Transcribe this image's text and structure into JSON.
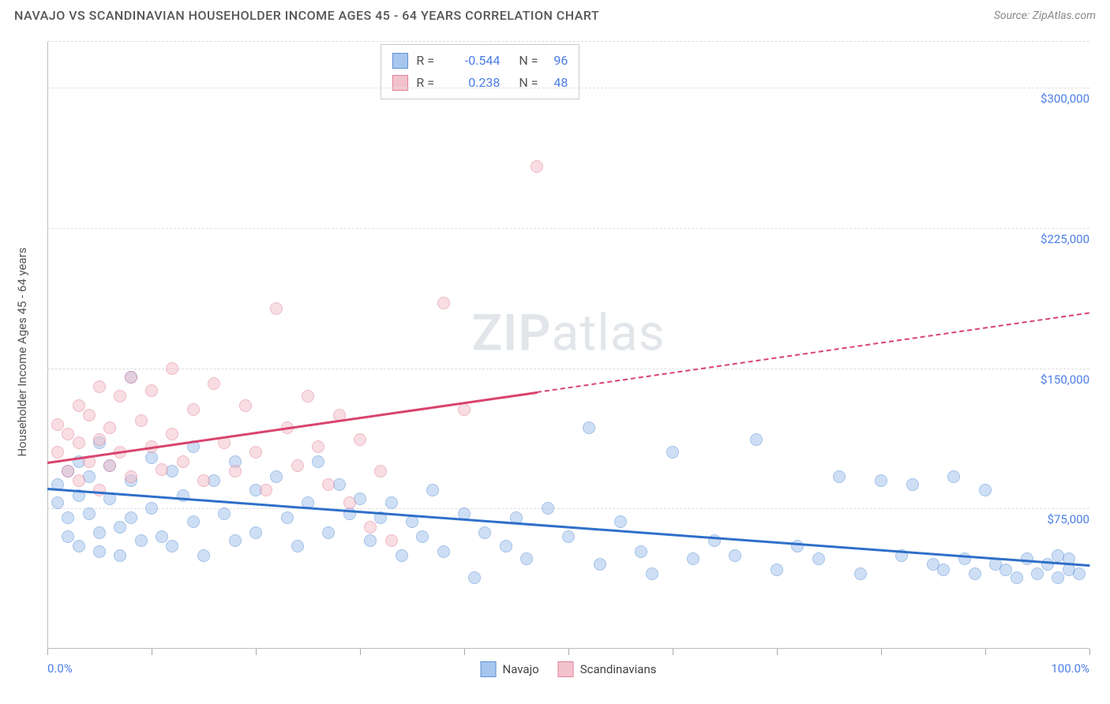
{
  "title": "NAVAJO VS SCANDINAVIAN HOUSEHOLDER INCOME AGES 45 - 64 YEARS CORRELATION CHART",
  "source": "Source: ZipAtlas.com",
  "watermark_bold": "ZIP",
  "watermark_light": "atlas",
  "ylabel": "Householder Income Ages 45 - 64 years",
  "chart": {
    "type": "scatter",
    "xlim": [
      0,
      100
    ],
    "ylim": [
      0,
      325000
    ],
    "xticks": [
      0,
      10,
      20,
      30,
      40,
      50,
      60,
      70,
      80,
      90,
      100
    ],
    "xticks_labeled": [
      {
        "v": 0,
        "label": "0.0%"
      },
      {
        "v": 100,
        "label": "100.0%"
      }
    ],
    "yticks": [
      {
        "v": 75000,
        "label": "$75,000"
      },
      {
        "v": 150000,
        "label": "$150,000"
      },
      {
        "v": 225000,
        "label": "$225,000"
      },
      {
        "v": 300000,
        "label": "$300,000"
      }
    ],
    "grid_color": "#dddddd",
    "axis_color": "#bbbbbb",
    "tick_label_color": "#4a7ee8",
    "background_color": "#ffffff",
    "point_radius": 8,
    "point_opacity": 0.55,
    "series": [
      {
        "name": "Navajo",
        "fill": "#a7c6ed",
        "stroke": "#5a8fd6",
        "trend_color": "#2f6fc9",
        "R_label": "R =",
        "R": "-0.544",
        "N_label": "N =",
        "N": "96",
        "trend": {
          "x1": 0,
          "y1": 86000,
          "x2": 100,
          "y2": 45000,
          "solid_until_x": 100
        },
        "points": [
          [
            1,
            88000
          ],
          [
            1,
            78000
          ],
          [
            2,
            95000
          ],
          [
            2,
            70000
          ],
          [
            2,
            60000
          ],
          [
            3,
            100000
          ],
          [
            3,
            82000
          ],
          [
            3,
            55000
          ],
          [
            4,
            92000
          ],
          [
            4,
            72000
          ],
          [
            5,
            110000
          ],
          [
            5,
            62000
          ],
          [
            5,
            52000
          ],
          [
            6,
            98000
          ],
          [
            6,
            80000
          ],
          [
            7,
            65000
          ],
          [
            7,
            50000
          ],
          [
            8,
            145000
          ],
          [
            8,
            90000
          ],
          [
            8,
            70000
          ],
          [
            9,
            58000
          ],
          [
            10,
            102000
          ],
          [
            10,
            75000
          ],
          [
            11,
            60000
          ],
          [
            12,
            95000
          ],
          [
            12,
            55000
          ],
          [
            13,
            82000
          ],
          [
            14,
            108000
          ],
          [
            14,
            68000
          ],
          [
            15,
            50000
          ],
          [
            16,
            90000
          ],
          [
            17,
            72000
          ],
          [
            18,
            100000
          ],
          [
            18,
            58000
          ],
          [
            20,
            85000
          ],
          [
            20,
            62000
          ],
          [
            22,
            92000
          ],
          [
            23,
            70000
          ],
          [
            24,
            55000
          ],
          [
            25,
            78000
          ],
          [
            26,
            100000
          ],
          [
            27,
            62000
          ],
          [
            28,
            88000
          ],
          [
            29,
            72000
          ],
          [
            30,
            80000
          ],
          [
            31,
            58000
          ],
          [
            32,
            70000
          ],
          [
            33,
            78000
          ],
          [
            34,
            50000
          ],
          [
            35,
            68000
          ],
          [
            36,
            60000
          ],
          [
            37,
            85000
          ],
          [
            38,
            52000
          ],
          [
            40,
            72000
          ],
          [
            41,
            38000
          ],
          [
            42,
            62000
          ],
          [
            44,
            55000
          ],
          [
            45,
            70000
          ],
          [
            46,
            48000
          ],
          [
            48,
            75000
          ],
          [
            50,
            60000
          ],
          [
            52,
            118000
          ],
          [
            53,
            45000
          ],
          [
            55,
            68000
          ],
          [
            57,
            52000
          ],
          [
            58,
            40000
          ],
          [
            60,
            105000
          ],
          [
            62,
            48000
          ],
          [
            64,
            58000
          ],
          [
            66,
            50000
          ],
          [
            68,
            112000
          ],
          [
            70,
            42000
          ],
          [
            72,
            55000
          ],
          [
            74,
            48000
          ],
          [
            76,
            92000
          ],
          [
            78,
            40000
          ],
          [
            80,
            90000
          ],
          [
            82,
            50000
          ],
          [
            83,
            88000
          ],
          [
            85,
            45000
          ],
          [
            86,
            42000
          ],
          [
            87,
            92000
          ],
          [
            88,
            48000
          ],
          [
            89,
            40000
          ],
          [
            90,
            85000
          ],
          [
            91,
            45000
          ],
          [
            92,
            42000
          ],
          [
            93,
            38000
          ],
          [
            94,
            48000
          ],
          [
            95,
            40000
          ],
          [
            96,
            45000
          ],
          [
            97,
            50000
          ],
          [
            97,
            38000
          ],
          [
            98,
            42000
          ],
          [
            98,
            48000
          ],
          [
            99,
            40000
          ]
        ]
      },
      {
        "name": "Scandinavians",
        "fill": "#f3c3cd",
        "stroke": "#e07f99",
        "trend_color": "#d9436e",
        "R_label": "R =",
        "R": "0.238",
        "N_label": "N =",
        "N": "48",
        "trend": {
          "x1": 0,
          "y1": 100000,
          "x2": 100,
          "y2": 180000,
          "solid_until_x": 47
        },
        "points": [
          [
            1,
            120000
          ],
          [
            1,
            105000
          ],
          [
            2,
            115000
          ],
          [
            2,
            95000
          ],
          [
            3,
            130000
          ],
          [
            3,
            110000
          ],
          [
            3,
            90000
          ],
          [
            4,
            125000
          ],
          [
            4,
            100000
          ],
          [
            5,
            140000
          ],
          [
            5,
            112000
          ],
          [
            5,
            85000
          ],
          [
            6,
            118000
          ],
          [
            6,
            98000
          ],
          [
            7,
            135000
          ],
          [
            7,
            105000
          ],
          [
            8,
            145000
          ],
          [
            8,
            92000
          ],
          [
            9,
            122000
          ],
          [
            10,
            138000
          ],
          [
            10,
            108000
          ],
          [
            11,
            96000
          ],
          [
            12,
            150000
          ],
          [
            12,
            115000
          ],
          [
            13,
            100000
          ],
          [
            14,
            128000
          ],
          [
            15,
            90000
          ],
          [
            16,
            142000
          ],
          [
            17,
            110000
          ],
          [
            18,
            95000
          ],
          [
            19,
            130000
          ],
          [
            20,
            105000
          ],
          [
            21,
            85000
          ],
          [
            22,
            182000
          ],
          [
            23,
            118000
          ],
          [
            24,
            98000
          ],
          [
            25,
            135000
          ],
          [
            26,
            108000
          ],
          [
            27,
            88000
          ],
          [
            28,
            125000
          ],
          [
            29,
            78000
          ],
          [
            30,
            112000
          ],
          [
            31,
            65000
          ],
          [
            32,
            95000
          ],
          [
            33,
            58000
          ],
          [
            38,
            185000
          ],
          [
            40,
            128000
          ],
          [
            47,
            258000
          ]
        ]
      }
    ]
  }
}
